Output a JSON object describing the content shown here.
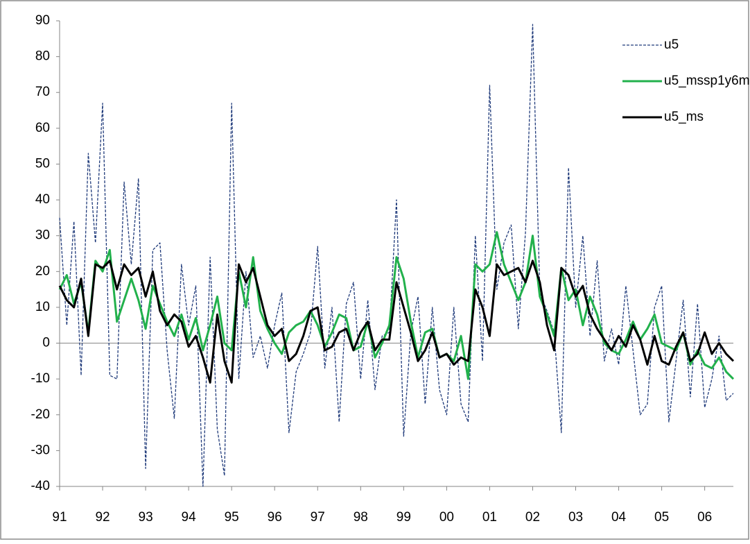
{
  "chart_data": {
    "type": "line",
    "categories": [
      "91",
      null,
      null,
      null,
      null,
      null,
      "92",
      null,
      null,
      null,
      null,
      null,
      "93",
      null,
      null,
      null,
      null,
      null,
      "94",
      null,
      null,
      null,
      null,
      null,
      "95",
      null,
      null,
      null,
      null,
      null,
      "96",
      null,
      null,
      null,
      null,
      null,
      "97",
      null,
      null,
      null,
      null,
      null,
      "98",
      null,
      null,
      null,
      null,
      null,
      "99",
      null,
      null,
      null,
      null,
      null,
      "00",
      null,
      null,
      null,
      null,
      null,
      "01",
      null,
      null,
      null,
      null,
      null,
      "02",
      null,
      null,
      null,
      null,
      null,
      "03",
      null,
      null,
      null,
      null,
      null,
      "04",
      null,
      null,
      null,
      null,
      null,
      "05",
      null,
      null,
      null,
      null,
      null,
      "06",
      null,
      null,
      null,
      null
    ],
    "series": [
      {
        "name": "u5",
        "color": "#1f3a7a",
        "dash": true,
        "values": [
          35,
          5,
          34,
          -9,
          53,
          28,
          67,
          -9,
          -10,
          45,
          22,
          46,
          -35,
          26,
          28,
          -2,
          -21,
          22,
          5,
          16,
          -40,
          24,
          -24,
          -37,
          67,
          -10,
          20,
          -4,
          2,
          -7,
          5,
          14,
          -25,
          -8,
          -3,
          3,
          27,
          -7,
          10,
          -22,
          11,
          17,
          -10,
          12,
          -13,
          2,
          3,
          40,
          -26,
          3,
          13,
          -17,
          10,
          -13,
          -20,
          10,
          -17,
          -22,
          30,
          -5,
          72,
          15,
          28,
          33,
          4,
          31,
          89,
          14,
          9,
          3,
          -25,
          49,
          10,
          30,
          2,
          23,
          -5,
          4,
          -6,
          16,
          -2,
          -20,
          -17,
          10,
          16,
          -22,
          -5,
          12,
          -15,
          11,
          -18,
          -10,
          2,
          -16,
          -14
        ]
      },
      {
        "name": "u5_mssp1y6m",
        "color": "#22b14c",
        "dash": false,
        "values": [
          15,
          19,
          11,
          17,
          3,
          23,
          20,
          26,
          6,
          12,
          18,
          12,
          4,
          16,
          11,
          6,
          2,
          8,
          1,
          7,
          -2,
          5,
          13,
          0,
          -2,
          20,
          10,
          24,
          9,
          4,
          0,
          -3,
          3,
          5,
          6,
          9,
          5,
          -1,
          3,
          8,
          7,
          -2,
          -1,
          6,
          -4,
          0,
          5,
          24,
          18,
          6,
          -4,
          3,
          4,
          -4,
          -3,
          -5,
          2,
          -10,
          22,
          20,
          22,
          31,
          22,
          17,
          12,
          17,
          30,
          13,
          8,
          2,
          21,
          12,
          15,
          5,
          13,
          8,
          0,
          -2,
          -3,
          1,
          6,
          1,
          4,
          8,
          0,
          -1,
          -2,
          3,
          -6,
          -2,
          -6,
          -7,
          -4,
          -8,
          -10
        ]
      },
      {
        "name": "u5_ms",
        "color": "#000000",
        "dash": false,
        "values": [
          16,
          12,
          10,
          18,
          2,
          22,
          21,
          23,
          15,
          22,
          19,
          21,
          13,
          20,
          9,
          5,
          8,
          6,
          -1,
          2,
          -4,
          -11,
          8,
          -5,
          -11,
          22,
          17,
          21,
          13,
          5,
          2,
          4,
          -5,
          -3,
          2,
          9,
          10,
          -2,
          -1,
          3,
          4,
          -2,
          3,
          6,
          -2,
          1,
          1,
          17,
          10,
          3,
          -5,
          -2,
          3,
          -4,
          -3,
          -6,
          -4,
          -5,
          15,
          10,
          2,
          22,
          19,
          20,
          21,
          17,
          23,
          17,
          5,
          -2,
          21,
          19,
          13,
          16,
          8,
          4,
          1,
          -2,
          2,
          -1,
          5,
          1,
          -6,
          2,
          -5,
          -6,
          -1,
          3,
          -5,
          -3,
          3,
          -3,
          0,
          -3,
          -5
        ]
      }
    ],
    "ylim": [
      -40,
      90
    ],
    "yticks": [
      -40,
      -30,
      -20,
      -10,
      0,
      10,
      20,
      30,
      40,
      50,
      60,
      70,
      80,
      90
    ],
    "legend": "upper right"
  }
}
